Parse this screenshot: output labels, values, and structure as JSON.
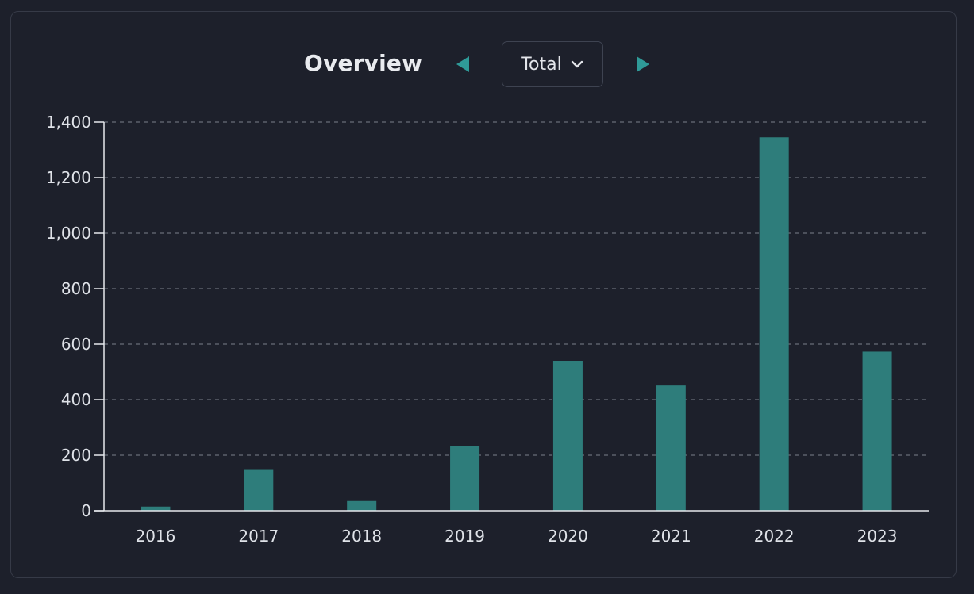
{
  "header": {
    "title": "Overview",
    "dropdown_value": "Total",
    "prev_icon": "triangle-left-icon",
    "next_icon": "triangle-right-icon",
    "dropdown_icon": "chevron-down-icon"
  },
  "colors": {
    "background": "#1d202b",
    "bar": "#2e7d7b",
    "arrow": "#2f9a98",
    "grid": "#9aa0ab",
    "axis": "#e6e8ec",
    "text": "#dfe2e8"
  },
  "chart_data": {
    "type": "bar",
    "title": "",
    "xlabel": "",
    "ylabel": "",
    "categories": [
      "2016",
      "2017",
      "2018",
      "2019",
      "2020",
      "2021",
      "2022",
      "2023"
    ],
    "values": [
      15,
      147,
      35,
      234,
      540,
      451,
      1345,
      573
    ],
    "ylim": [
      0,
      1400
    ],
    "yticks": [
      0,
      200,
      400,
      600,
      800,
      1000,
      1200,
      1400
    ],
    "ytick_labels": [
      "0",
      "200",
      "400",
      "600",
      "800",
      "1,000",
      "1,200",
      "1,400"
    ],
    "grid": "horizontal-dashed",
    "legend": "none"
  }
}
